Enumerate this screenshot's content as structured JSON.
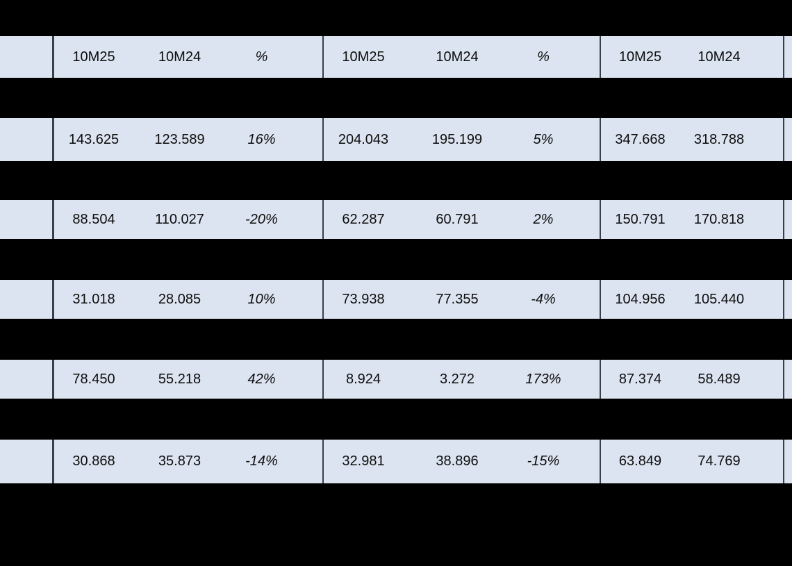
{
  "chart_data": {
    "type": "table",
    "header_cells": [
      "10M25",
      "10M24",
      "%",
      "10M25",
      "10M24",
      "%",
      "10M25",
      "10M24"
    ],
    "column_groups": [
      {
        "columns": [
          "10M25",
          "10M24",
          "%"
        ]
      },
      {
        "columns": [
          "10M25",
          "10M24",
          "%"
        ]
      },
      {
        "columns": [
          "10M25",
          "10M24"
        ]
      }
    ],
    "rows": [
      [
        "143.625",
        "123.589",
        "16%",
        "204.043",
        "195.199",
        "5%",
        "347.668",
        "318.788"
      ],
      [
        "88.504",
        "110.027",
        "-20%",
        "62.287",
        "60.791",
        "2%",
        "150.791",
        "170.818"
      ],
      [
        "31.018",
        "28.085",
        "10%",
        "73.938",
        "77.355",
        "-4%",
        "104.956",
        "105.440"
      ],
      [
        "78.450",
        "55.218",
        "42%",
        "8.924",
        "3.272",
        "173%",
        "87.374",
        "58.489"
      ],
      [
        "30.868",
        "35.873",
        "-14%",
        "32.981",
        "38.896",
        "-15%",
        "63.849",
        "74.769"
      ]
    ],
    "layout": {
      "title_band_redacted": true,
      "row_label_column_redacted": true,
      "section_rows_redacted": true,
      "right_edge_clipped": true,
      "grid": "vertical group borders only"
    }
  },
  "colors": {
    "row_bg": "#dbe4f0",
    "band_bg": "#000000",
    "border": "#3a4048",
    "text": "#0d0d0d"
  }
}
